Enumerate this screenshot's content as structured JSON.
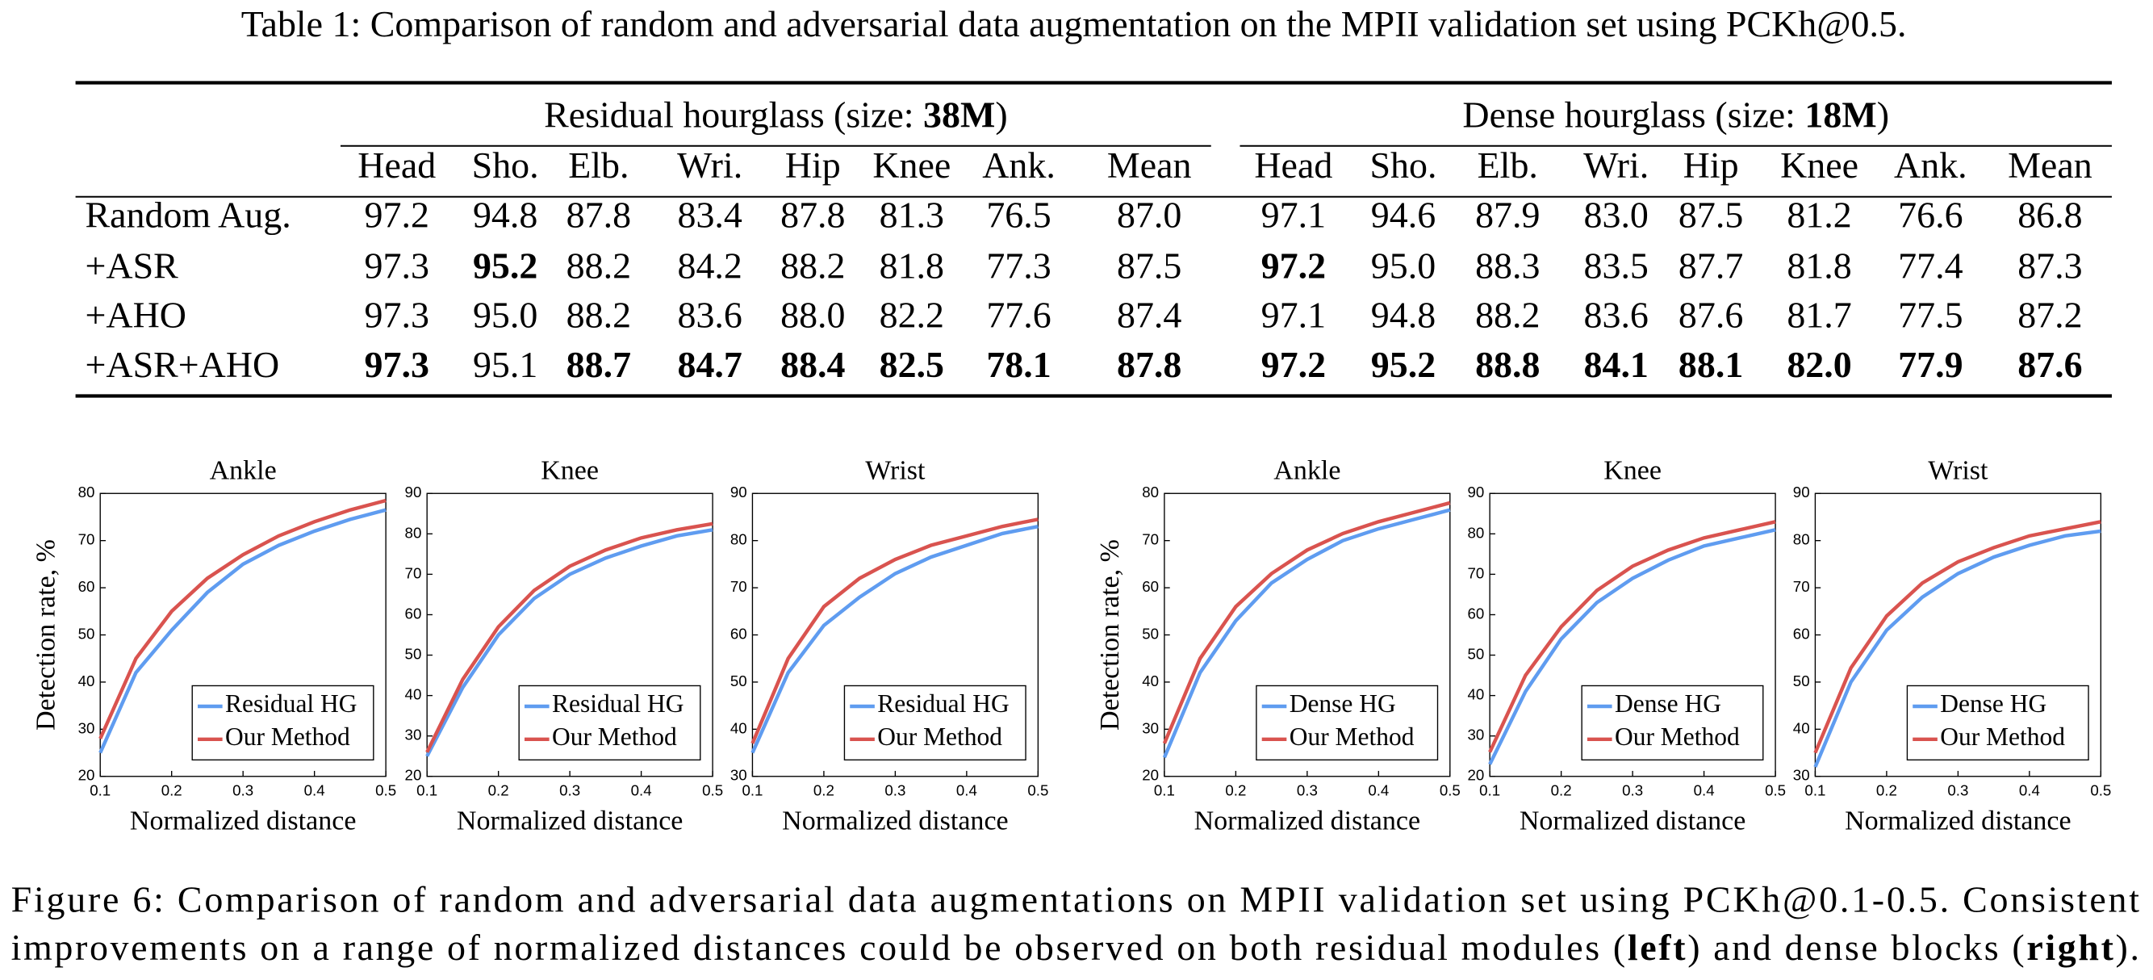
{
  "table": {
    "caption": "Table 1: Comparison of random and adversarial data augmentation on the MPII validation set using PCKh@0.5.",
    "groups": [
      {
        "parts": [
          {
            "text": "Residual hourglass (size: "
          },
          {
            "text": "38M",
            "bold": true
          },
          {
            "text": ")"
          }
        ]
      },
      {
        "parts": [
          {
            "text": "Dense hourglass (size: "
          },
          {
            "text": "18M",
            "bold": true
          },
          {
            "text": ")"
          }
        ]
      }
    ],
    "columns": [
      "Head",
      "Sho.",
      "Elb.",
      "Wri.",
      "Hip",
      "Knee",
      "Ank.",
      "Mean",
      "Head",
      "Sho.",
      "Elb.",
      "Wri.",
      "Hip",
      "Knee",
      "Ank.",
      "Mean"
    ],
    "rows": [
      {
        "label": "Random Aug.",
        "cells": [
          "97.2",
          "94.8",
          "87.8",
          "83.4",
          "87.8",
          "81.3",
          "76.5",
          "87.0",
          "97.1",
          "94.6",
          "87.9",
          "83.0",
          "87.5",
          "81.2",
          "76.6",
          "86.8"
        ]
      },
      {
        "label": "+ASR",
        "cells": [
          "97.3",
          "95.2",
          "88.2",
          "84.2",
          "88.2",
          "81.8",
          "77.3",
          "87.5",
          "97.2",
          "95.0",
          "88.3",
          "83.5",
          "87.7",
          "81.8",
          "77.4",
          "87.3"
        ],
        "bold": [
          1,
          8
        ]
      },
      {
        "label": "+AHO",
        "cells": [
          "97.3",
          "95.0",
          "88.2",
          "83.6",
          "88.0",
          "82.2",
          "77.6",
          "87.4",
          "97.1",
          "94.8",
          "88.2",
          "83.6",
          "87.6",
          "81.7",
          "77.5",
          "87.2"
        ]
      },
      {
        "label": "+ASR+AHO",
        "cells": [
          "97.3",
          "95.1",
          "88.7",
          "84.7",
          "88.4",
          "82.5",
          "78.1",
          "87.8",
          "97.2",
          "95.2",
          "88.8",
          "84.1",
          "88.1",
          "82.0",
          "77.9",
          "87.6"
        ],
        "bold": [
          0,
          2,
          3,
          4,
          5,
          6,
          7,
          8,
          9,
          10,
          11,
          12,
          13,
          14,
          15
        ]
      }
    ]
  },
  "chart_data": [
    {
      "type": "line",
      "title": "Ankle",
      "xlabel": "Normalized distance",
      "ylabel": "Detection rate, %",
      "x": [
        0.1,
        0.15,
        0.2,
        0.25,
        0.3,
        0.35,
        0.4,
        0.45,
        0.5
      ],
      "series": [
        {
          "name": "Residual HG",
          "color": "#5f9cf0",
          "values": [
            25,
            42,
            51,
            59,
            65,
            69,
            72,
            74.5,
            76.5
          ]
        },
        {
          "name": "Our Method",
          "color": "#d9534f",
          "values": [
            28,
            45,
            55,
            62,
            67,
            71,
            74,
            76.5,
            78.5
          ]
        }
      ],
      "xlim": [
        0.1,
        0.5
      ],
      "ylim": [
        20,
        80
      ],
      "xticks": [
        0.1,
        0.2,
        0.3,
        0.4,
        0.5
      ],
      "yticks": [
        20,
        30,
        40,
        50,
        60,
        70,
        80
      ],
      "legend": "lower right"
    },
    {
      "type": "line",
      "title": "Knee",
      "xlabel": "Normalized distance",
      "x": [
        0.1,
        0.15,
        0.2,
        0.25,
        0.3,
        0.35,
        0.4,
        0.45,
        0.5
      ],
      "series": [
        {
          "name": "Residual HG",
          "color": "#5f9cf0",
          "values": [
            25,
            42,
            55,
            64,
            70,
            74,
            77,
            79.5,
            81
          ]
        },
        {
          "name": "Our Method",
          "color": "#d9534f",
          "values": [
            26,
            44,
            57,
            66,
            72,
            76,
            79,
            81,
            82.5
          ]
        }
      ],
      "xlim": [
        0.1,
        0.5
      ],
      "ylim": [
        20,
        90
      ],
      "xticks": [
        0.1,
        0.2,
        0.3,
        0.4,
        0.5
      ],
      "yticks": [
        20,
        30,
        40,
        50,
        60,
        70,
        80,
        90
      ],
      "legend": "lower right"
    },
    {
      "type": "line",
      "title": "Wrist",
      "xlabel": "Normalized distance",
      "x": [
        0.1,
        0.15,
        0.2,
        0.25,
        0.3,
        0.35,
        0.4,
        0.45,
        0.5
      ],
      "series": [
        {
          "name": "Residual HG",
          "color": "#5f9cf0",
          "values": [
            35,
            52,
            62,
            68,
            73,
            76.5,
            79,
            81.5,
            83
          ]
        },
        {
          "name": "Our Method",
          "color": "#d9534f",
          "values": [
            37,
            55,
            66,
            72,
            76,
            79,
            81,
            83,
            84.5
          ]
        }
      ],
      "xlim": [
        0.1,
        0.5
      ],
      "ylim": [
        30,
        90
      ],
      "xticks": [
        0.1,
        0.2,
        0.3,
        0.4,
        0.5
      ],
      "yticks": [
        30,
        40,
        50,
        60,
        70,
        80,
        90
      ],
      "legend": "lower right"
    },
    {
      "type": "line",
      "title": "Ankle",
      "xlabel": "Normalized distance",
      "ylabel": "Detection rate, %",
      "x": [
        0.1,
        0.15,
        0.2,
        0.25,
        0.3,
        0.35,
        0.4,
        0.45,
        0.5
      ],
      "series": [
        {
          "name": "Dense HG",
          "color": "#5f9cf0",
          "values": [
            24,
            42,
            53,
            61,
            66,
            70,
            72.5,
            74.5,
            76.5
          ]
        },
        {
          "name": "Our Method",
          "color": "#d9534f",
          "values": [
            27,
            45,
            56,
            63,
            68,
            71.5,
            74,
            76,
            78
          ]
        }
      ],
      "xlim": [
        0.1,
        0.5
      ],
      "ylim": [
        20,
        80
      ],
      "xticks": [
        0.1,
        0.2,
        0.3,
        0.4,
        0.5
      ],
      "yticks": [
        20,
        30,
        40,
        50,
        60,
        70,
        80
      ],
      "legend": "lower right"
    },
    {
      "type": "line",
      "title": "Knee",
      "xlabel": "Normalized distance",
      "x": [
        0.1,
        0.15,
        0.2,
        0.25,
        0.3,
        0.35,
        0.4,
        0.45,
        0.5
      ],
      "series": [
        {
          "name": "Dense HG",
          "color": "#5f9cf0",
          "values": [
            23,
            41,
            54,
            63,
            69,
            73.5,
            77,
            79,
            81
          ]
        },
        {
          "name": "Our Method",
          "color": "#d9534f",
          "values": [
            26,
            45,
            57,
            66,
            72,
            76,
            79,
            81,
            83
          ]
        }
      ],
      "xlim": [
        0.1,
        0.5
      ],
      "ylim": [
        20,
        90
      ],
      "xticks": [
        0.1,
        0.2,
        0.3,
        0.4,
        0.5
      ],
      "yticks": [
        20,
        30,
        40,
        50,
        60,
        70,
        80,
        90
      ],
      "legend": "lower right"
    },
    {
      "type": "line",
      "title": "Wrist",
      "xlabel": "Normalized distance",
      "x": [
        0.1,
        0.15,
        0.2,
        0.25,
        0.3,
        0.35,
        0.4,
        0.45,
        0.5
      ],
      "series": [
        {
          "name": "Dense HG",
          "color": "#5f9cf0",
          "values": [
            32,
            50,
            61,
            68,
            73,
            76.5,
            79,
            81,
            82
          ]
        },
        {
          "name": "Our Method",
          "color": "#d9534f",
          "values": [
            35,
            53,
            64,
            71,
            75.5,
            78.5,
            81,
            82.5,
            84
          ]
        }
      ],
      "xlim": [
        0.1,
        0.5
      ],
      "ylim": [
        30,
        90
      ],
      "xticks": [
        0.1,
        0.2,
        0.3,
        0.4,
        0.5
      ],
      "yticks": [
        30,
        40,
        50,
        60,
        70,
        80,
        90
      ],
      "legend": "lower right"
    }
  ],
  "caption": {
    "lines": [
      [
        {
          "text": "Figure 6: Comparison of random and adversarial data augmentations on MPII validation set using PCKh@0.1-0.5. Consistent"
        }
      ],
      [
        {
          "text": "improvements on a range of normalized distances could be observed on both residual modules ("
        },
        {
          "text": "left",
          "bold": true
        },
        {
          "text": ") and dense blocks ("
        },
        {
          "text": "right",
          "bold": true
        },
        {
          "text": ")."
        }
      ]
    ]
  }
}
